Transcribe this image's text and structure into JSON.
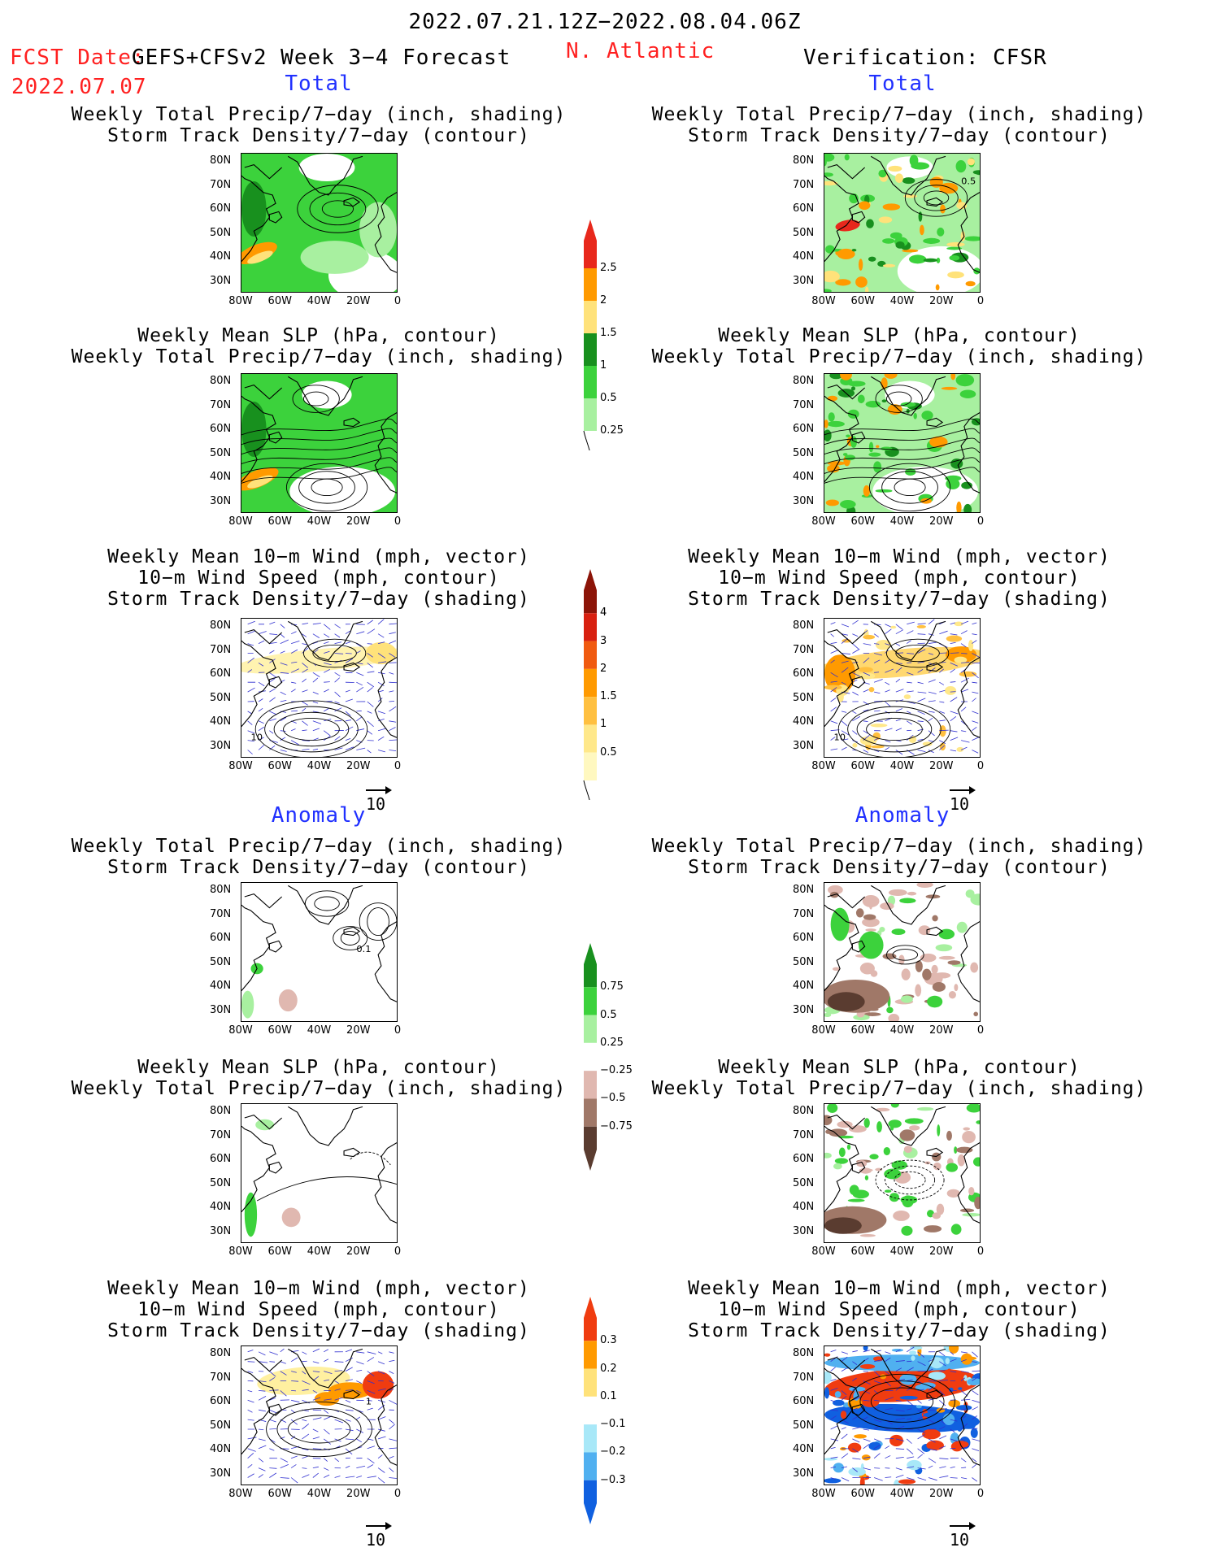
{
  "header": {
    "period": "2022.07.21.12Z−2022.08.04.06Z",
    "fcst_prefix": "FCST Date:",
    "model": "GEFS+CFSv2 Week 3−4 Forecast",
    "region": "N. Atlantic",
    "verification": "Verification: CFSR",
    "fcst_date": "2022.07.07"
  },
  "sections": {
    "total_label": "Total",
    "anomaly_label": "Anomaly"
  },
  "titles": {
    "precip_storm": [
      "Weekly Total Precip/7−day (inch, shading)",
      "Storm Track Density/7−day (contour)"
    ],
    "slp_precip": [
      "Weekly Mean SLP (hPa, contour)",
      "Weekly Total Precip/7−day (inch, shading)"
    ],
    "wind_storm": [
      "Weekly Mean 10−m Wind (mph, vector)",
      "10−m Wind Speed (mph, contour)",
      "Storm Track Density/7−day (shading)"
    ]
  },
  "axes": {
    "lat_labels": [
      "80N",
      "70N",
      "60N",
      "50N",
      "40N",
      "30N"
    ],
    "lon_labels": [
      "80W",
      "60W",
      "40W",
      "20W",
      "0"
    ]
  },
  "vector_ref": "10",
  "colorbars": {
    "precip_total": {
      "labels": [
        "2.5",
        "2",
        "1.5",
        "1",
        "0.5",
        "0.25"
      ],
      "colors": [
        "#e8281c",
        "#ff9a00",
        "#ffe27a",
        "#18901e",
        "#3cd23c",
        "#a8f0a0"
      ]
    },
    "storm_total": {
      "labels": [
        "4",
        "3",
        "2",
        "1.5",
        "1",
        "0.5"
      ],
      "colors": [
        "#8c1408",
        "#d82010",
        "#f05a10",
        "#ff9a00",
        "#ffc040",
        "#ffe88a",
        "#fff8c0"
      ]
    },
    "precip_anom": {
      "labels": [
        "0.75",
        "0.5",
        "0.25",
        "−0.25",
        "−0.5",
        "−0.75"
      ],
      "colors": [
        "#18901e",
        "#3cd23c",
        "#a8f0a0",
        "#ffffff",
        "#e0b8b0",
        "#a07868",
        "#5a3c30"
      ]
    },
    "storm_anom": {
      "labels": [
        "0.3",
        "0.2",
        "0.1",
        "−0.1",
        "−0.2",
        "−0.3"
      ],
      "colors": [
        "#f03c10",
        "#ff9a00",
        "#ffe27a",
        "#ffffff",
        "#a8e8f8",
        "#50b0f0",
        "#1060e0"
      ]
    }
  },
  "contour_labels": {
    "tr_storm": "0.5",
    "al_storm": "0.1",
    "tr_wind": "10",
    "al_wind": "1"
  }
}
